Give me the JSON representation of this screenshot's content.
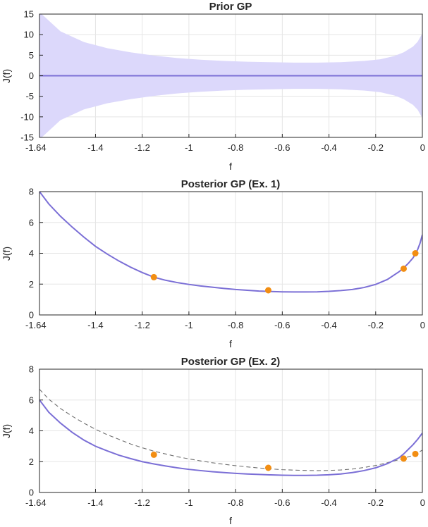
{
  "colors": {
    "line": "#7B6FD6",
    "band": "#DCD8FB",
    "points": "#F28E13",
    "dashed": "#6E6E6E",
    "grid": "#E5E5E5",
    "axis": "#262626"
  },
  "chart_data": [
    {
      "type": "area",
      "title": "Prior GP",
      "xlabel": "f",
      "ylabel": "J(f)",
      "xlim": [
        -1.64,
        0
      ],
      "ylim": [
        -15,
        15
      ],
      "xticks": [
        "-1.64",
        "-1.4",
        "-1.2",
        "-1",
        "-0.8",
        "-0.6",
        "-0.4",
        "-0.2",
        "0"
      ],
      "yticks": [
        "-15",
        "-10",
        "-5",
        "0",
        "5",
        "10",
        "15"
      ],
      "grid": true,
      "series": [
        {
          "kind": "band",
          "x": [
            -1.64,
            -1.55,
            -1.45,
            -1.35,
            -1.25,
            -1.15,
            -1.05,
            -0.95,
            -0.85,
            -0.75,
            -0.65,
            -0.55,
            -0.45,
            -0.35,
            -0.25,
            -0.18,
            -0.12,
            -0.08,
            -0.04,
            -0.02,
            0
          ],
          "upper": [
            15.5,
            10.8,
            8.2,
            6.7,
            5.7,
            4.9,
            4.3,
            3.9,
            3.6,
            3.4,
            3.3,
            3.2,
            3.2,
            3.3,
            3.6,
            4.0,
            4.8,
            5.7,
            7.1,
            8.3,
            10.3
          ],
          "lower": [
            -15.5,
            -10.8,
            -8.2,
            -6.7,
            -5.7,
            -4.9,
            -4.3,
            -3.9,
            -3.6,
            -3.4,
            -3.3,
            -3.2,
            -3.2,
            -3.3,
            -3.6,
            -4.0,
            -4.8,
            -5.7,
            -7.1,
            -8.3,
            -10.3
          ]
        },
        {
          "kind": "line",
          "style": "solid",
          "x": [
            -1.64,
            0
          ],
          "y": [
            0,
            0
          ]
        }
      ]
    },
    {
      "type": "line",
      "title": "Posterior GP (Ex. 1)",
      "xlabel": "f",
      "ylabel": "J(f)",
      "xlim": [
        -1.64,
        0
      ],
      "ylim": [
        0,
        8
      ],
      "xticks": [
        "-1.64",
        "-1.4",
        "-1.2",
        "-1",
        "-0.8",
        "-0.6",
        "-0.4",
        "-0.2",
        "0"
      ],
      "yticks": [
        "0",
        "2",
        "4",
        "6",
        "8"
      ],
      "grid": true,
      "series": [
        {
          "kind": "line",
          "style": "dashed",
          "x": [
            -1.64,
            -1.6,
            -1.55,
            -1.5,
            -1.45,
            -1.4,
            -1.35,
            -1.3,
            -1.25,
            -1.2,
            -1.15,
            -1.1,
            -1.05,
            -1.0,
            -0.95,
            -0.9,
            -0.85,
            -0.8,
            -0.75,
            -0.7,
            -0.65,
            -0.6,
            -0.55,
            -0.5,
            -0.45,
            -0.4,
            -0.35,
            -0.3,
            -0.25,
            -0.2,
            -0.15,
            -0.1,
            -0.08,
            -0.06,
            -0.04,
            -0.03,
            -0.02,
            -0.01,
            0
          ],
          "y": [
            8.0,
            7.2,
            6.4,
            5.7,
            5.05,
            4.45,
            3.95,
            3.5,
            3.1,
            2.75,
            2.45,
            2.25,
            2.1,
            1.98,
            1.88,
            1.8,
            1.72,
            1.65,
            1.6,
            1.55,
            1.52,
            1.5,
            1.49,
            1.49,
            1.5,
            1.53,
            1.58,
            1.65,
            1.78,
            1.98,
            2.3,
            2.8,
            3.05,
            3.35,
            3.7,
            3.95,
            4.25,
            4.65,
            5.2
          ]
        },
        {
          "kind": "line",
          "style": "solid",
          "x": [
            -1.64,
            -1.6,
            -1.55,
            -1.5,
            -1.45,
            -1.4,
            -1.35,
            -1.3,
            -1.25,
            -1.2,
            -1.15,
            -1.1,
            -1.05,
            -1.0,
            -0.95,
            -0.9,
            -0.85,
            -0.8,
            -0.75,
            -0.7,
            -0.65,
            -0.6,
            -0.55,
            -0.5,
            -0.45,
            -0.4,
            -0.35,
            -0.3,
            -0.25,
            -0.2,
            -0.15,
            -0.1,
            -0.08,
            -0.06,
            -0.04,
            -0.03,
            -0.02,
            -0.01,
            0
          ],
          "y": [
            8.0,
            7.2,
            6.4,
            5.7,
            5.05,
            4.45,
            3.95,
            3.5,
            3.1,
            2.75,
            2.45,
            2.25,
            2.1,
            1.98,
            1.88,
            1.8,
            1.72,
            1.65,
            1.6,
            1.55,
            1.52,
            1.5,
            1.49,
            1.49,
            1.5,
            1.53,
            1.58,
            1.65,
            1.78,
            1.98,
            2.3,
            2.8,
            3.05,
            3.35,
            3.7,
            3.95,
            4.25,
            4.65,
            5.2
          ]
        },
        {
          "kind": "points",
          "x": [
            -1.15,
            -0.66,
            -0.08,
            -0.03
          ],
          "y": [
            2.45,
            1.6,
            3.0,
            4.0
          ]
        }
      ]
    },
    {
      "type": "line",
      "title": "Posterior GP (Ex. 2)",
      "xlabel": "f",
      "ylabel": "J(f)",
      "xlim": [
        -1.64,
        0
      ],
      "ylim": [
        0,
        8
      ],
      "xticks": [
        "-1.64",
        "-1.4",
        "-1.2",
        "-1",
        "-0.8",
        "-0.6",
        "-0.4",
        "-0.2",
        "0"
      ],
      "yticks": [
        "0",
        "2",
        "4",
        "6",
        "8"
      ],
      "grid": true,
      "series": [
        {
          "kind": "line",
          "style": "dashed",
          "x": [
            -1.64,
            -1.6,
            -1.55,
            -1.5,
            -1.45,
            -1.4,
            -1.35,
            -1.3,
            -1.25,
            -1.2,
            -1.15,
            -1.1,
            -1.05,
            -1.0,
            -0.95,
            -0.9,
            -0.85,
            -0.8,
            -0.75,
            -0.7,
            -0.65,
            -0.6,
            -0.55,
            -0.5,
            -0.45,
            -0.4,
            -0.35,
            -0.3,
            -0.25,
            -0.2,
            -0.15,
            -0.1,
            -0.08,
            -0.05,
            -0.03,
            0
          ],
          "y": [
            6.7,
            6.05,
            5.45,
            4.95,
            4.5,
            4.1,
            3.75,
            3.45,
            3.15,
            2.9,
            2.68,
            2.5,
            2.32,
            2.18,
            2.05,
            1.93,
            1.83,
            1.74,
            1.66,
            1.59,
            1.53,
            1.48,
            1.45,
            1.43,
            1.42,
            1.43,
            1.46,
            1.52,
            1.62,
            1.75,
            1.93,
            2.13,
            2.22,
            2.36,
            2.48,
            2.75
          ]
        },
        {
          "kind": "line",
          "style": "solid",
          "x": [
            -1.64,
            -1.6,
            -1.55,
            -1.5,
            -1.45,
            -1.4,
            -1.35,
            -1.3,
            -1.25,
            -1.2,
            -1.15,
            -1.1,
            -1.05,
            -1.0,
            -0.95,
            -0.9,
            -0.85,
            -0.8,
            -0.75,
            -0.7,
            -0.65,
            -0.6,
            -0.55,
            -0.5,
            -0.45,
            -0.4,
            -0.35,
            -0.3,
            -0.25,
            -0.2,
            -0.15,
            -0.1,
            -0.08,
            -0.06,
            -0.04,
            -0.02,
            0
          ],
          "y": [
            6.0,
            5.2,
            4.5,
            3.9,
            3.4,
            3.0,
            2.7,
            2.42,
            2.2,
            2.0,
            1.85,
            1.72,
            1.6,
            1.5,
            1.42,
            1.35,
            1.29,
            1.24,
            1.2,
            1.17,
            1.14,
            1.12,
            1.11,
            1.11,
            1.12,
            1.15,
            1.2,
            1.29,
            1.42,
            1.6,
            1.87,
            2.25,
            2.5,
            2.8,
            3.1,
            3.45,
            3.85
          ]
        },
        {
          "kind": "points",
          "x": [
            -1.15,
            -0.66,
            -0.08,
            -0.03
          ],
          "y": [
            2.45,
            1.6,
            2.2,
            2.5
          ]
        }
      ]
    }
  ]
}
